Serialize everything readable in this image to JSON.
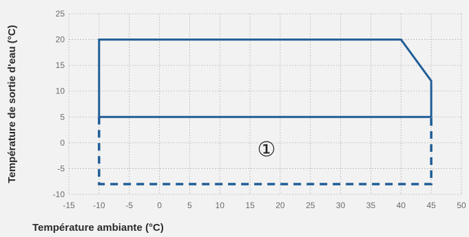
{
  "chart_data": {
    "type": "line",
    "xlabel": "Température ambiante (°C)",
    "ylabel": "Température de sortie d'eau (°C)",
    "xlim": [
      -15,
      50
    ],
    "ylim": [
      -10,
      25
    ],
    "x_ticks": [
      -15,
      -10,
      -5,
      0,
      5,
      10,
      15,
      20,
      25,
      30,
      35,
      40,
      45,
      50
    ],
    "y_ticks": [
      -10,
      -5,
      0,
      5,
      10,
      15,
      20,
      25
    ],
    "grid": true,
    "line_color": "#1f5d96",
    "annotation": "①",
    "series": [
      {
        "style": "solid",
        "points": [
          [
            -10,
            5
          ],
          [
            -10,
            20
          ],
          [
            40,
            20
          ],
          [
            45,
            12
          ],
          [
            45,
            5
          ],
          [
            -10,
            5
          ]
        ]
      },
      {
        "style": "dashed",
        "points": [
          [
            -10,
            5
          ],
          [
            -10,
            -8
          ],
          [
            45,
            -8
          ],
          [
            45,
            5
          ]
        ]
      }
    ],
    "annotation_position": [
      20,
      -1
    ]
  }
}
